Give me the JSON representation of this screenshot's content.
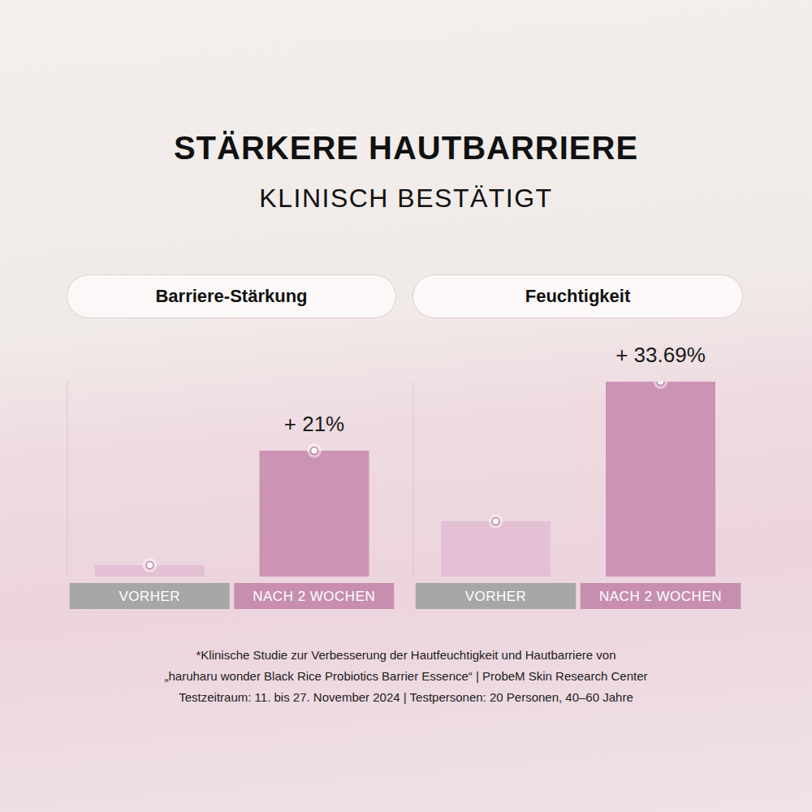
{
  "title": "STÄRKERE HAUTBARRIERE",
  "subtitle": "KLINISCH BESTÄTIGT",
  "footnote": [
    "*Klinische Studie zur Verbesserung der Hautfeuchtigkeit und Hautbarriere von",
    "„haruharu wonder Black Rice Probiotics Barrier Essence“ | ProbeM Skin Research Center",
    "Testzeitraum: 11. bis 27. November 2024 | Testpersonen: 20 Personen, 40–60 Jahre"
  ],
  "chart_data": [
    {
      "type": "bar",
      "title": "Barriere-Stärkung",
      "categories": [
        "VORHER",
        "NACH 2 WOCHEN"
      ],
      "values": [
        14,
        155
      ],
      "colors": [
        "#e3c0d3",
        "#cc93b5"
      ],
      "ylim": [
        0,
        240
      ],
      "yticks": [],
      "tick_labels": "x",
      "annotation": "+ 21%"
    },
    {
      "type": "bar",
      "title": "Feuchtigkeit",
      "categories": [
        "VORHER",
        "NACH 2 WOCHEN"
      ],
      "values": [
        68,
        240
      ],
      "colors": [
        "#e3c0d3",
        "#cc93b5"
      ],
      "ylim": [
        0,
        240
      ],
      "yticks": [],
      "tick_labels": "x",
      "annotation": "+ 33.69%"
    }
  ]
}
